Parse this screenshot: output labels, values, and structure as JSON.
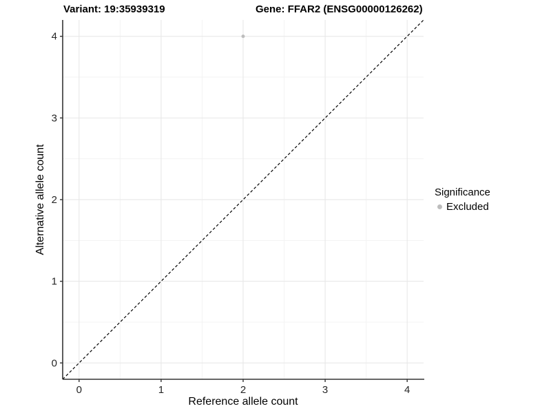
{
  "chart_data": {
    "type": "scatter",
    "titles": {
      "variant": "Variant: 19:35939319",
      "gene": "Gene: FFAR2 (ENSG00000126262)"
    },
    "xlabel": "Reference allele count",
    "ylabel": "Alternative allele count",
    "xlim": [
      -0.2,
      4.2
    ],
    "ylim": [
      -0.2,
      4.2
    ],
    "x_ticks": [
      0,
      1,
      2,
      3,
      4
    ],
    "y_ticks": [
      0,
      1,
      2,
      3,
      4
    ],
    "grid": {
      "major": true,
      "minor": true
    },
    "reference_line": {
      "kind": "identity",
      "style": "dashed",
      "x1": -0.2,
      "y1": -0.2,
      "x2": 4.2,
      "y2": 4.2
    },
    "series": [
      {
        "name": "Excluded",
        "color": "#bdbdbd",
        "point_radius": 2.5,
        "points": [
          [
            2,
            4
          ]
        ]
      }
    ],
    "legend": {
      "title": "Significance",
      "position": "right",
      "items": [
        {
          "label": "Excluded",
          "color": "#bdbdbd"
        }
      ]
    },
    "colors": {
      "grid_major": "#e6e6e6",
      "grid_minor": "#f3f3f3",
      "axis": "#333333",
      "tick_label": "#262626",
      "reference_line": "#000000"
    }
  }
}
